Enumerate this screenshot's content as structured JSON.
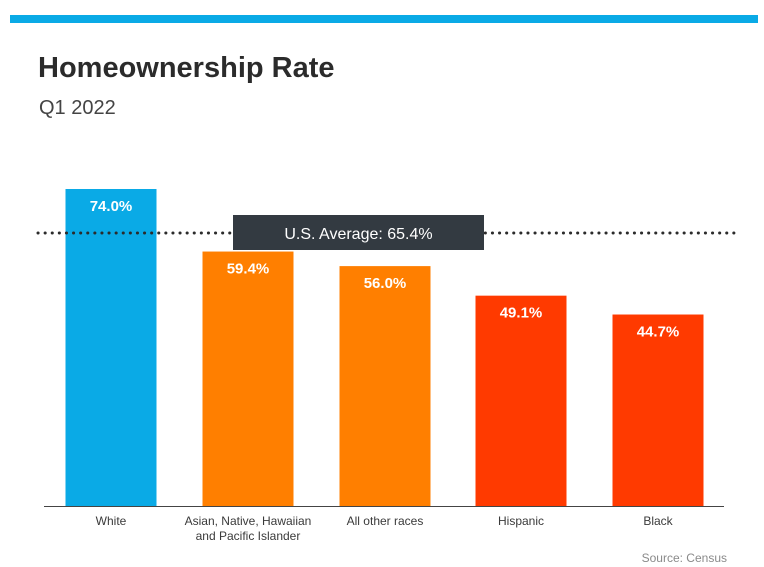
{
  "header": {
    "title": "Homeownership Rate",
    "subtitle": "Q1 2022"
  },
  "footer": {
    "source": "Source: Census"
  },
  "colors": {
    "top_bar": "#0aaae6",
    "axis": "#444444",
    "avg_line": "#2b2b2b",
    "avg_label_bg": "#333a41",
    "avg_label_text": "#ffffff"
  },
  "chart_data": {
    "type": "bar",
    "title": "Homeownership Rate",
    "subtitle": "Q1 2022",
    "categories": [
      "White",
      "Asian, Native, Hawaiian and Pacific Islander",
      "All other races",
      "Hispanic",
      "Black"
    ],
    "category_lines": [
      [
        "White"
      ],
      [
        "Asian, Native, Hawaiian",
        "and Pacific Islander"
      ],
      [
        "All other races"
      ],
      [
        "Hispanic"
      ],
      [
        "Black"
      ]
    ],
    "values": [
      74.0,
      59.4,
      56.0,
      49.1,
      44.7
    ],
    "value_labels": [
      "74.0%",
      "59.4%",
      "56.0%",
      "49.1%",
      "44.7%"
    ],
    "bar_colors": [
      "#0aaae6",
      "#ff7f00",
      "#ff7f00",
      "#ff3a00",
      "#ff3a00"
    ],
    "reference_line": {
      "value": 65.4,
      "label": "U.S. Average: 65.4%",
      "style": "dotted"
    },
    "ylim": [
      0,
      74
    ],
    "grid": false,
    "legend": "none"
  }
}
